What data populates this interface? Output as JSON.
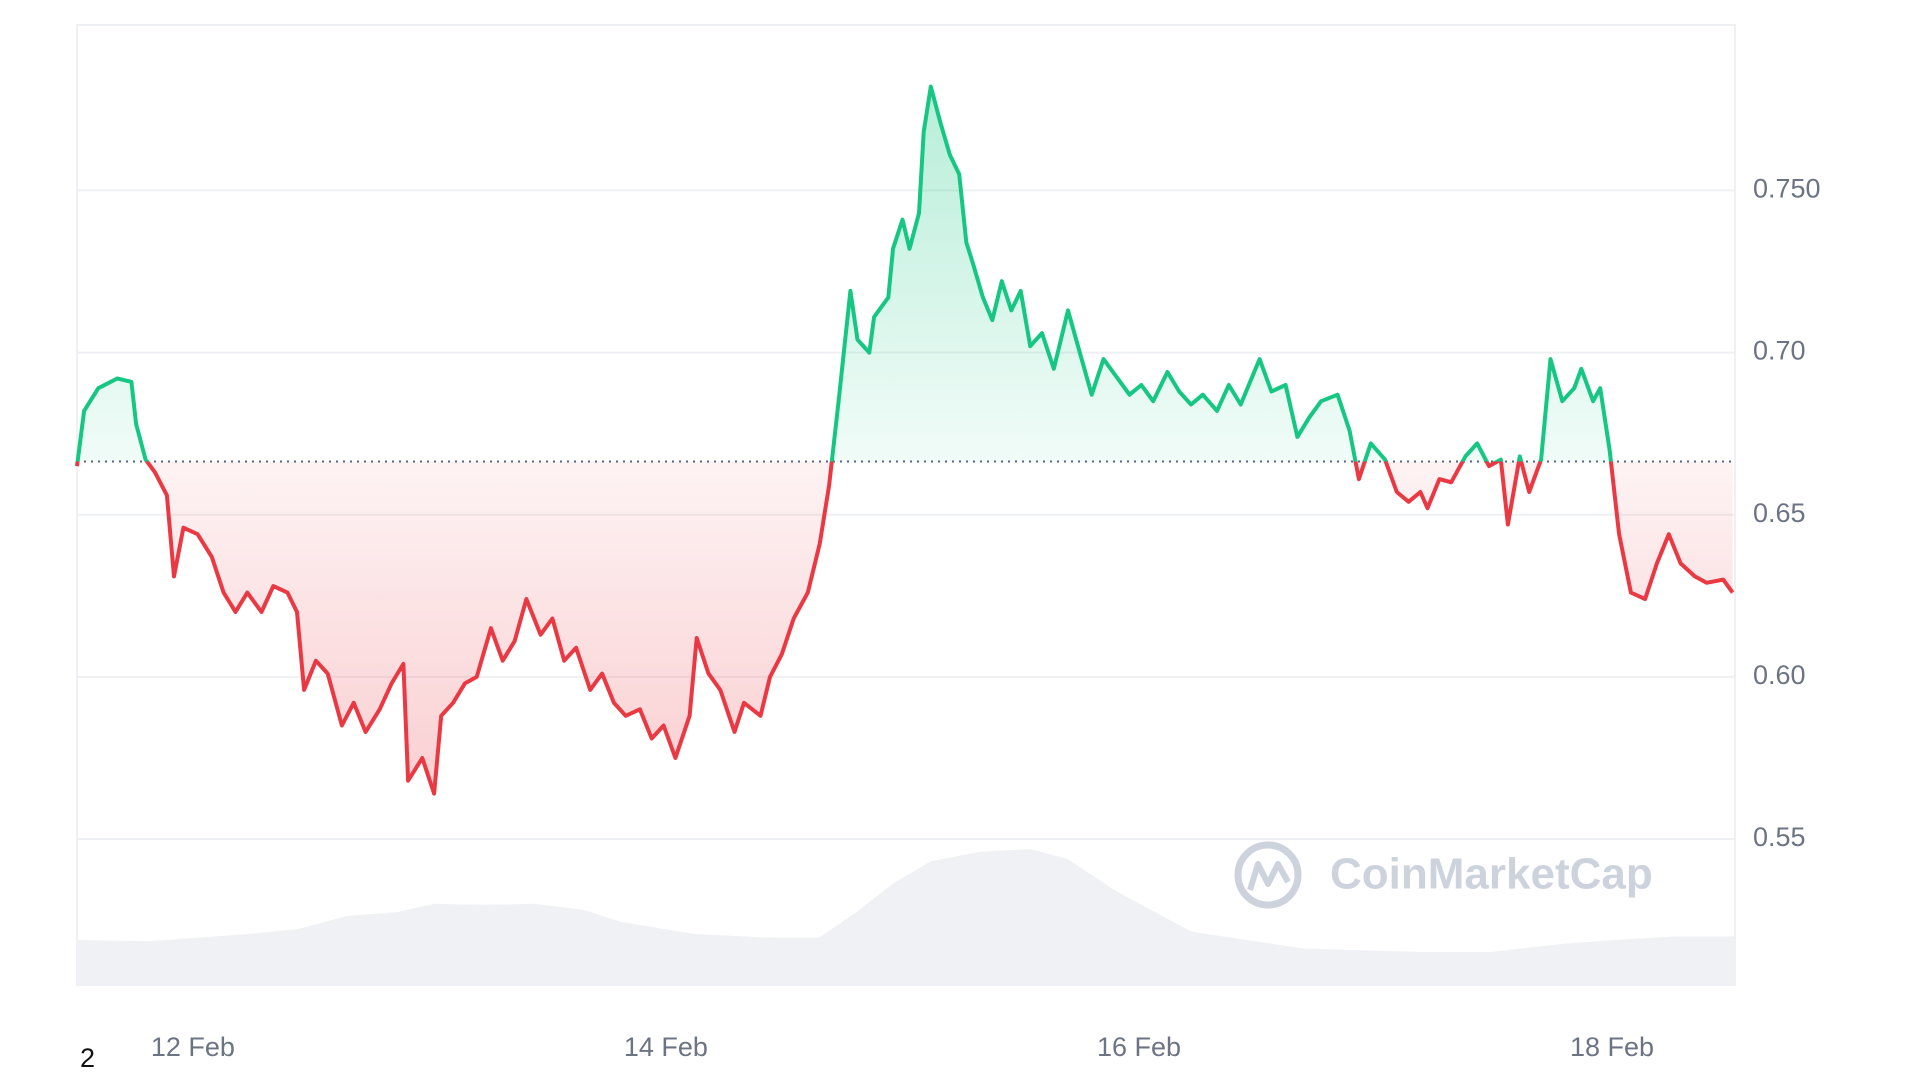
{
  "chart_data": {
    "type": "line",
    "x": [
      11.51,
      11.54,
      11.6,
      11.68,
      11.74,
      11.76,
      11.8,
      11.84,
      11.89,
      11.92,
      11.96,
      12.02,
      12.08,
      12.13,
      12.18,
      12.23,
      12.29,
      12.34,
      12.4,
      12.44,
      12.47,
      12.52,
      12.57,
      12.63,
      12.68,
      12.73,
      12.79,
      12.84,
      12.89,
      12.91,
      12.97,
      13.02,
      13.05,
      13.1,
      13.15,
      13.2,
      13.26,
      13.31,
      13.36,
      13.41,
      13.47,
      13.52,
      13.57,
      13.62,
      13.68,
      13.73,
      13.78,
      13.83,
      13.89,
      13.94,
      13.99,
      14.04,
      14.1,
      14.13,
      14.18,
      14.23,
      14.29,
      14.33,
      14.4,
      14.44,
      14.49,
      14.54,
      14.6,
      14.65,
      14.69,
      14.73,
      14.78,
      14.81,
      14.86,
      14.88,
      14.94,
      14.96,
      15.0,
      15.03,
      15.07,
      15.09,
      15.12,
      15.16,
      15.2,
      15.24,
      15.27,
      15.3,
      15.34,
      15.38,
      15.42,
      15.46,
      15.5,
      15.54,
      15.59,
      15.64,
      15.7,
      15.75,
      15.8,
      15.85,
      15.91,
      15.96,
      16.01,
      16.06,
      16.12,
      16.17,
      16.22,
      16.27,
      16.33,
      16.38,
      16.43,
      16.51,
      16.56,
      16.62,
      16.67,
      16.72,
      16.77,
      16.84,
      16.89,
      16.93,
      16.98,
      17.04,
      17.09,
      17.14,
      17.19,
      17.22,
      17.27,
      17.32,
      17.38,
      17.43,
      17.48,
      17.53,
      17.56,
      17.61,
      17.65,
      17.7,
      17.74,
      17.79,
      17.84,
      17.87,
      17.92,
      17.95,
      17.99,
      18.03,
      18.08,
      18.14,
      18.19,
      18.24,
      18.29,
      18.35,
      18.4,
      18.47,
      18.51
    ],
    "series": [
      {
        "name": "Price",
        "values": [
          0.665,
          0.682,
          0.689,
          0.692,
          0.691,
          0.678,
          0.667,
          0.663,
          0.656,
          0.631,
          0.646,
          0.644,
          0.637,
          0.626,
          0.62,
          0.626,
          0.62,
          0.628,
          0.626,
          0.62,
          0.596,
          0.605,
          0.601,
          0.585,
          0.592,
          0.583,
          0.59,
          0.598,
          0.604,
          0.568,
          0.575,
          0.564,
          0.588,
          0.592,
          0.598,
          0.6,
          0.615,
          0.605,
          0.611,
          0.624,
          0.613,
          0.618,
          0.605,
          0.609,
          0.596,
          0.601,
          0.592,
          0.588,
          0.59,
          0.581,
          0.585,
          0.575,
          0.588,
          0.612,
          0.601,
          0.596,
          0.583,
          0.592,
          0.588,
          0.6,
          0.607,
          0.618,
          0.626,
          0.641,
          0.659,
          0.685,
          0.719,
          0.704,
          0.7,
          0.711,
          0.717,
          0.732,
          0.741,
          0.732,
          0.743,
          0.768,
          0.782,
          0.771,
          0.761,
          0.755,
          0.734,
          0.727,
          0.717,
          0.71,
          0.722,
          0.713,
          0.719,
          0.702,
          0.706,
          0.695,
          0.713,
          0.7,
          0.687,
          0.698,
          0.692,
          0.687,
          0.69,
          0.685,
          0.694,
          0.688,
          0.684,
          0.687,
          0.682,
          0.69,
          0.684,
          0.698,
          0.688,
          0.69,
          0.674,
          0.68,
          0.685,
          0.687,
          0.676,
          0.661,
          0.672,
          0.667,
          0.657,
          0.654,
          0.657,
          0.652,
          0.661,
          0.66,
          0.668,
          0.672,
          0.665,
          0.667,
          0.647,
          0.668,
          0.657,
          0.667,
          0.698,
          0.685,
          0.689,
          0.695,
          0.685,
          0.689,
          0.67,
          0.644,
          0.626,
          0.624,
          0.635,
          0.644,
          0.635,
          0.631,
          0.629,
          0.63,
          0.626
        ]
      }
    ],
    "baseline": 0.6664,
    "up_color": "#16c784",
    "down_color": "#ea3943",
    "xlim": [
      11.51,
      18.52
    ],
    "xticks": [
      {
        "value": 12,
        "label": "12 Feb"
      },
      {
        "value": 14,
        "label": "14 Feb"
      },
      {
        "value": 16,
        "label": "16 Feb"
      },
      {
        "value": 18,
        "label": "18 Feb"
      }
    ],
    "ylim": [
      0.505,
      0.801
    ],
    "yticks": [
      {
        "value": 0.75,
        "label": "0.750"
      },
      {
        "value": 0.7,
        "label": "0.70"
      },
      {
        "value": 0.65,
        "label": "0.65"
      },
      {
        "value": 0.6,
        "label": "0.60"
      },
      {
        "value": 0.55,
        "label": "0.55"
      }
    ],
    "grid": true,
    "watermark": "CoinMarketCap",
    "footnote": "2"
  }
}
